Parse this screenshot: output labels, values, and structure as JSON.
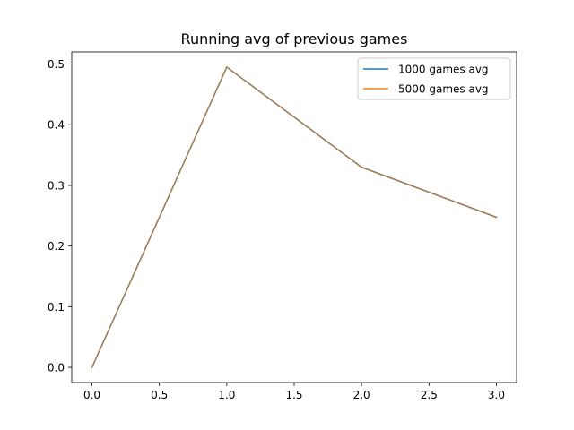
{
  "chart_data": {
    "type": "line",
    "title": "Running avg of previous games",
    "xlabel": "",
    "ylabel": "",
    "x": [
      0,
      1,
      2,
      3
    ],
    "series": [
      {
        "name": "1000 games avg",
        "color": "#1f77b4",
        "values": [
          0.0,
          0.495,
          0.33,
          0.2475
        ]
      },
      {
        "name": "5000 games avg",
        "color": "#ff7f0e",
        "values": [
          0.0,
          0.495,
          0.33,
          0.2475
        ]
      }
    ],
    "xlim": [
      -0.15,
      3.15
    ],
    "ylim": [
      -0.025,
      0.52
    ],
    "x_ticks": [
      "0.0",
      "0.5",
      "1.0",
      "1.5",
      "2.0",
      "2.5",
      "3.0"
    ],
    "y_ticks": [
      "0.0",
      "0.1",
      "0.2",
      "0.3",
      "0.4",
      "0.5"
    ],
    "grid": false,
    "legend_position": "upper right"
  }
}
